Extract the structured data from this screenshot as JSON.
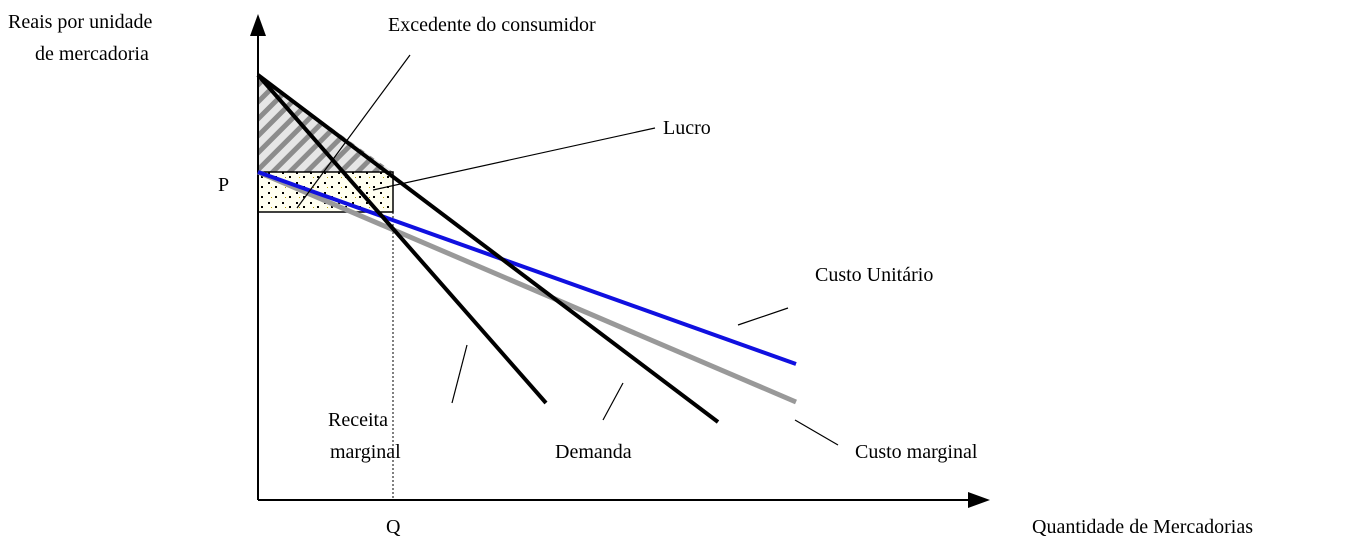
{
  "axes": {
    "y_label": [
      "Reais por unidade",
      "de mercadoria"
    ],
    "x_label": "Quantidade de Mercadorias",
    "p_label": "P",
    "q_label": "Q"
  },
  "annotations": {
    "consumer_surplus": "Excedente do consumidor",
    "profit": "Lucro",
    "unit_cost": "Custo Unitário",
    "marginal_revenue": [
      "Receita",
      "marginal"
    ],
    "demand": "Demanda",
    "marginal_cost": "Custo marginal"
  }
}
